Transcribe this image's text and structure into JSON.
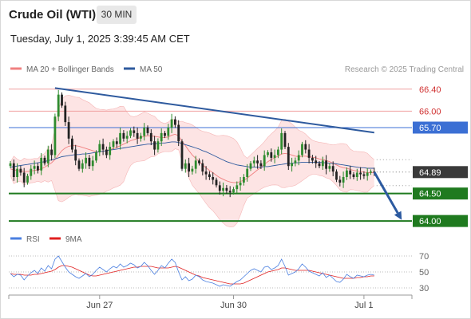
{
  "header": {
    "title": "Crude Oil (WTI)",
    "timeframe": "30 MIN",
    "datetime": "Tuesday, July 1, 2025 3:39:45 AM CET"
  },
  "colors": {
    "bollinger": "#f08080",
    "bollinger_fill": "#fde4e4",
    "ma50": "#2e5a9e",
    "level_blue": "#3b6fd4",
    "level_green": "#1f7a1f",
    "current": "#3a3a3a",
    "candle_up": "#2e8b2e",
    "candle_down": "#222222",
    "rsi": "#4a7fe0",
    "rsi_ma": "#e02020",
    "arrow": "#2c5aa0"
  },
  "chart_data": [
    {
      "type": "candlestick",
      "legend": [
        {
          "label": "MA 20 + Bollinger Bands",
          "color": "#f08080"
        },
        {
          "label": "MA 50",
          "color": "#2e5a9e"
        }
      ],
      "legend_position": "top-left",
      "credit": "Research © 2025 Trading Central",
      "x_ticks": [
        {
          "i": 26,
          "label": "Jun 27"
        },
        {
          "i": 65,
          "label": "Jun 30"
        },
        {
          "i": 103,
          "label": "Jul 1"
        }
      ],
      "ylim": [
        63.9,
        66.6
      ],
      "levels": [
        {
          "value": 66.4,
          "label": "66.40",
          "style": "resistance-red"
        },
        {
          "value": 66.0,
          "label": "66.00",
          "style": "resistance-red"
        },
        {
          "value": 65.7,
          "label": "65.70",
          "style": "resistance-blue"
        },
        {
          "value": 64.89,
          "label": "64.89",
          "style": "current"
        },
        {
          "value": 64.5,
          "label": "64.50",
          "style": "support-green"
        },
        {
          "value": 64.0,
          "label": "64.00",
          "style": "support-green"
        }
      ],
      "trendline": {
        "from": {
          "i": 13,
          "y": 66.42
        },
        "to": {
          "i": 106,
          "y": 65.61
        }
      },
      "forecast_arrow": {
        "from": {
          "i": 106,
          "y": 64.89
        },
        "to": {
          "i": 114,
          "y": 64.02
        }
      },
      "series": {
        "close": [
          65.05,
          64.8,
          64.95,
          64.88,
          64.7,
          64.82,
          64.95,
          65.0,
          64.92,
          65.15,
          65.05,
          65.3,
          65.2,
          65.9,
          66.3,
          66.1,
          65.8,
          65.5,
          65.3,
          65.1,
          64.95,
          65.05,
          65.15,
          65.0,
          65.1,
          65.25,
          65.4,
          65.3,
          65.2,
          65.35,
          65.45,
          65.4,
          65.6,
          65.5,
          65.55,
          65.65,
          65.6,
          65.5,
          65.55,
          65.7,
          65.6,
          65.45,
          65.3,
          65.45,
          65.6,
          65.55,
          65.7,
          65.85,
          65.75,
          65.45,
          64.95,
          65.05,
          64.9,
          64.95,
          65.1,
          65.05,
          64.9,
          64.85,
          64.8,
          64.75,
          64.65,
          64.55,
          64.6,
          64.55,
          64.52,
          64.58,
          64.65,
          64.7,
          64.8,
          64.95,
          65.05,
          65.1,
          65.05,
          65.0,
          65.2,
          65.25,
          65.15,
          65.2,
          65.3,
          65.6,
          65.35,
          65.0,
          65.05,
          65.1,
          65.2,
          65.4,
          65.3,
          65.15,
          65.1,
          65.05,
          65.0,
          65.1,
          64.95,
          65.0,
          64.9,
          64.75,
          64.7,
          64.8,
          64.92,
          64.85,
          64.8,
          64.88,
          64.85,
          64.82,
          64.88,
          64.9,
          64.89
        ],
        "ma20": [
          64.95,
          64.93,
          64.92,
          64.91,
          64.9,
          64.9,
          64.91,
          64.92,
          64.93,
          64.95,
          64.98,
          65.02,
          65.06,
          65.12,
          65.2,
          65.28,
          65.33,
          65.36,
          65.37,
          65.37,
          65.36,
          65.34,
          65.32,
          65.3,
          65.28,
          65.26,
          65.26,
          65.27,
          65.28,
          65.3,
          65.32,
          65.34,
          65.37,
          65.4,
          65.43,
          65.46,
          65.48,
          65.5,
          65.52,
          65.54,
          65.55,
          65.55,
          65.54,
          65.53,
          65.52,
          65.52,
          65.53,
          65.56,
          65.58,
          65.55,
          65.45,
          65.37,
          65.28,
          65.2,
          65.14,
          65.08,
          65.02,
          64.97,
          64.92,
          64.88,
          64.83,
          64.79,
          64.76,
          64.73,
          64.71,
          64.7,
          64.7,
          64.72,
          64.74,
          64.78,
          64.83,
          64.88,
          64.93,
          64.98,
          65.03,
          65.08,
          65.12,
          65.15,
          65.18,
          65.22,
          65.23,
          65.22,
          65.2,
          65.18,
          65.17,
          65.18,
          65.18,
          65.17,
          65.16,
          65.15,
          65.13,
          65.12,
          65.1,
          65.08,
          65.05,
          65.02,
          64.99,
          64.97,
          64.96,
          64.94,
          64.92,
          64.91,
          64.9,
          64.89,
          64.88,
          64.88,
          64.88
        ],
        "ma50": [
          64.98,
          64.99,
          65.0,
          65.01,
          65.02,
          65.03,
          65.04,
          65.05,
          65.06,
          65.07,
          65.08,
          65.1,
          65.11,
          65.13,
          65.15,
          65.17,
          65.18,
          65.19,
          65.2,
          65.21,
          65.21,
          65.22,
          65.22,
          65.23,
          65.24,
          65.25,
          65.26,
          65.27,
          65.28,
          65.29,
          65.3,
          65.31,
          65.32,
          65.33,
          65.34,
          65.35,
          65.36,
          65.37,
          65.38,
          65.39,
          65.4,
          65.4,
          65.41,
          65.41,
          65.42,
          65.42,
          65.43,
          65.44,
          65.44,
          65.43,
          65.41,
          65.39,
          65.37,
          65.35,
          65.33,
          65.31,
          65.28,
          65.26,
          65.23,
          65.2,
          65.17,
          65.14,
          65.11,
          65.08,
          65.06,
          65.04,
          65.02,
          65.01,
          65.0,
          64.99,
          64.98,
          64.98,
          64.98,
          64.98,
          64.99,
          64.99,
          65.0,
          65.01,
          65.02,
          65.03,
          65.04,
          65.05,
          65.05,
          65.06,
          65.06,
          65.07,
          65.07,
          65.07,
          65.07,
          65.07,
          65.07,
          65.06,
          65.06,
          65.05,
          65.05,
          65.04,
          65.03,
          65.02,
          65.01,
          65.0,
          64.99,
          64.98,
          64.97,
          64.97,
          64.96,
          64.96,
          64.96
        ]
      }
    },
    {
      "type": "line",
      "panel": "RSI",
      "legend": [
        {
          "label": "RSI",
          "color": "#4a7fe0"
        },
        {
          "label": "9MA",
          "color": "#e02020"
        }
      ],
      "y_ticks": [
        70,
        50,
        30
      ],
      "ylim": [
        25,
        75
      ],
      "series": [
        {
          "name": "RSI",
          "values": [
            48,
            44,
            47,
            46,
            40,
            45,
            49,
            52,
            48,
            55,
            51,
            58,
            54,
            66,
            70,
            63,
            56,
            50,
            47,
            44,
            42,
            45,
            48,
            44,
            47,
            52,
            56,
            53,
            50,
            54,
            57,
            55,
            60,
            56,
            58,
            61,
            59,
            55,
            57,
            62,
            58,
            52,
            47,
            52,
            58,
            55,
            61,
            66,
            62,
            50,
            40,
            44,
            39,
            41,
            46,
            44,
            40,
            38,
            37,
            36,
            34,
            32,
            34,
            33,
            32,
            35,
            38,
            40,
            44,
            48,
            52,
            54,
            52,
            50,
            56,
            57,
            53,
            55,
            58,
            66,
            57,
            46,
            48,
            50,
            54,
            60,
            56,
            51,
            49,
            47,
            45,
            49,
            43,
            46,
            42,
            38,
            37,
            41,
            47,
            44,
            42,
            46,
            45,
            44,
            46,
            47,
            46
          ]
        },
        {
          "name": "9MA",
          "values": [
            48,
            47,
            47,
            47,
            46,
            46,
            46,
            47,
            47,
            48,
            49,
            50,
            51,
            53,
            56,
            58,
            58,
            57,
            56,
            54,
            52,
            50,
            48,
            46,
            45,
            45,
            46,
            47,
            48,
            49,
            50,
            51,
            52,
            53,
            54,
            55,
            56,
            56,
            57,
            57,
            57,
            57,
            56,
            55,
            55,
            55,
            55,
            56,
            57,
            56,
            54,
            52,
            50,
            48,
            46,
            45,
            43,
            42,
            41,
            40,
            39,
            38,
            37,
            36,
            35,
            35,
            35,
            35,
            36,
            38,
            40,
            42,
            44,
            46,
            48,
            50,
            51,
            52,
            53,
            55,
            55,
            54,
            53,
            52,
            52,
            52,
            52,
            52,
            51,
            50,
            49,
            48,
            47,
            46,
            45,
            44,
            43,
            42,
            42,
            42,
            42,
            43,
            43,
            44,
            44,
            45,
            45
          ]
        }
      ]
    }
  ]
}
